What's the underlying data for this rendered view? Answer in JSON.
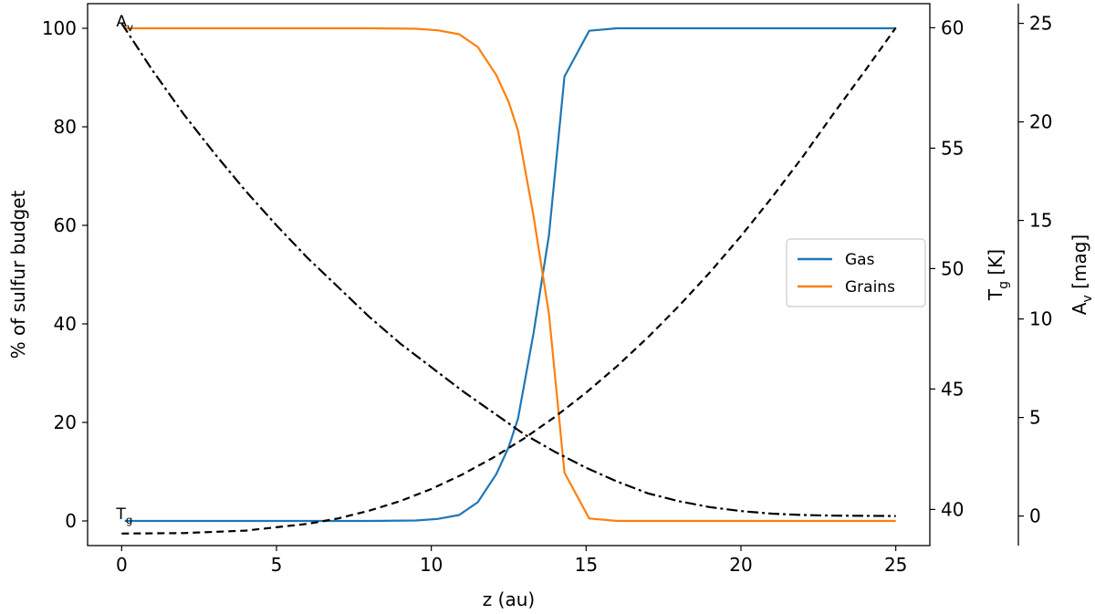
{
  "chart_data": {
    "type": "line",
    "xlabel": "z (au)",
    "ylabel": "% of sulfur budget",
    "y2label": "T_g [K]",
    "y3label": "A_v [mag]",
    "xlim": [
      -1.1,
      26.1
    ],
    "ylim": [
      -5,
      105
    ],
    "y2lim": [
      38.5,
      61
    ],
    "y3lim": [
      -1.5,
      26
    ],
    "x_ticks": [
      0,
      5,
      10,
      15,
      20,
      25
    ],
    "y_ticks": [
      0,
      20,
      40,
      60,
      80,
      100
    ],
    "y2_ticks": [
      40,
      45,
      50,
      55,
      60
    ],
    "y3_ticks": [
      0,
      5,
      10,
      15,
      20,
      25
    ],
    "legend_position": "center-right",
    "annotations": [
      {
        "text": "A_v",
        "x": 0,
        "y": 100
      },
      {
        "text": "T_g",
        "x": 0,
        "y": 0
      }
    ],
    "series": [
      {
        "name": "Gas",
        "axis": "left",
        "color": "#1f77b4",
        "style": "solid",
        "x": [
          0.1,
          2,
          4,
          6,
          8,
          9.5,
          10.2,
          10.9,
          11.5,
          12.1,
          12.5,
          12.8,
          13.3,
          13.8,
          14.3,
          15.1,
          16,
          18,
          20,
          22,
          25
        ],
        "y": [
          0,
          0,
          0,
          0,
          0,
          0.1,
          0.4,
          1.2,
          3.8,
          9.5,
          15,
          20.8,
          38,
          58,
          90.2,
          99.5,
          100,
          100,
          100,
          100,
          100
        ]
      },
      {
        "name": "Grains",
        "axis": "left",
        "color": "#ff7f0e",
        "style": "solid",
        "x": [
          0.1,
          2,
          4,
          6,
          8,
          9.5,
          10.2,
          10.9,
          11.5,
          12.1,
          12.5,
          12.8,
          13.3,
          13.8,
          14.3,
          15.1,
          16,
          18,
          20,
          22,
          25
        ],
        "y": [
          100,
          100,
          100,
          100,
          100,
          99.9,
          99.6,
          98.8,
          96.2,
          90.5,
          85,
          79.2,
          62,
          42,
          9.8,
          0.5,
          0,
          0,
          0,
          0,
          0
        ]
      },
      {
        "axis": "right_tg",
        "color": "#000000",
        "style": "dashed",
        "x": [
          0,
          2,
          4,
          6,
          7,
          8,
          9,
          10,
          11,
          12,
          13,
          14,
          15,
          16,
          17,
          18,
          19,
          20,
          21,
          22,
          23,
          24,
          25
        ],
        "y": [
          39.0,
          39.02,
          39.12,
          39.4,
          39.63,
          39.95,
          40.35,
          40.85,
          41.45,
          42.15,
          42.95,
          43.85,
          44.85,
          45.95,
          47.15,
          48.45,
          49.85,
          51.35,
          52.95,
          54.65,
          56.45,
          58.2,
          60.0
        ]
      },
      {
        "axis": "right_av",
        "color": "#000000",
        "style": "dashdot",
        "x": [
          0,
          1,
          2,
          3,
          4,
          5,
          6,
          7,
          8,
          9,
          10,
          11,
          12,
          13,
          14,
          15,
          16,
          17,
          18,
          19,
          20,
          21,
          22,
          23,
          24,
          25
        ],
        "y": [
          25.0,
          22.6,
          20.4,
          18.4,
          16.5,
          14.75,
          13.1,
          11.6,
          10.1,
          8.75,
          7.55,
          6.35,
          5.25,
          4.15,
          3.25,
          2.45,
          1.75,
          1.15,
          0.75,
          0.45,
          0.25,
          0.12,
          0.05,
          0.02,
          0.01,
          0.0
        ]
      }
    ]
  }
}
